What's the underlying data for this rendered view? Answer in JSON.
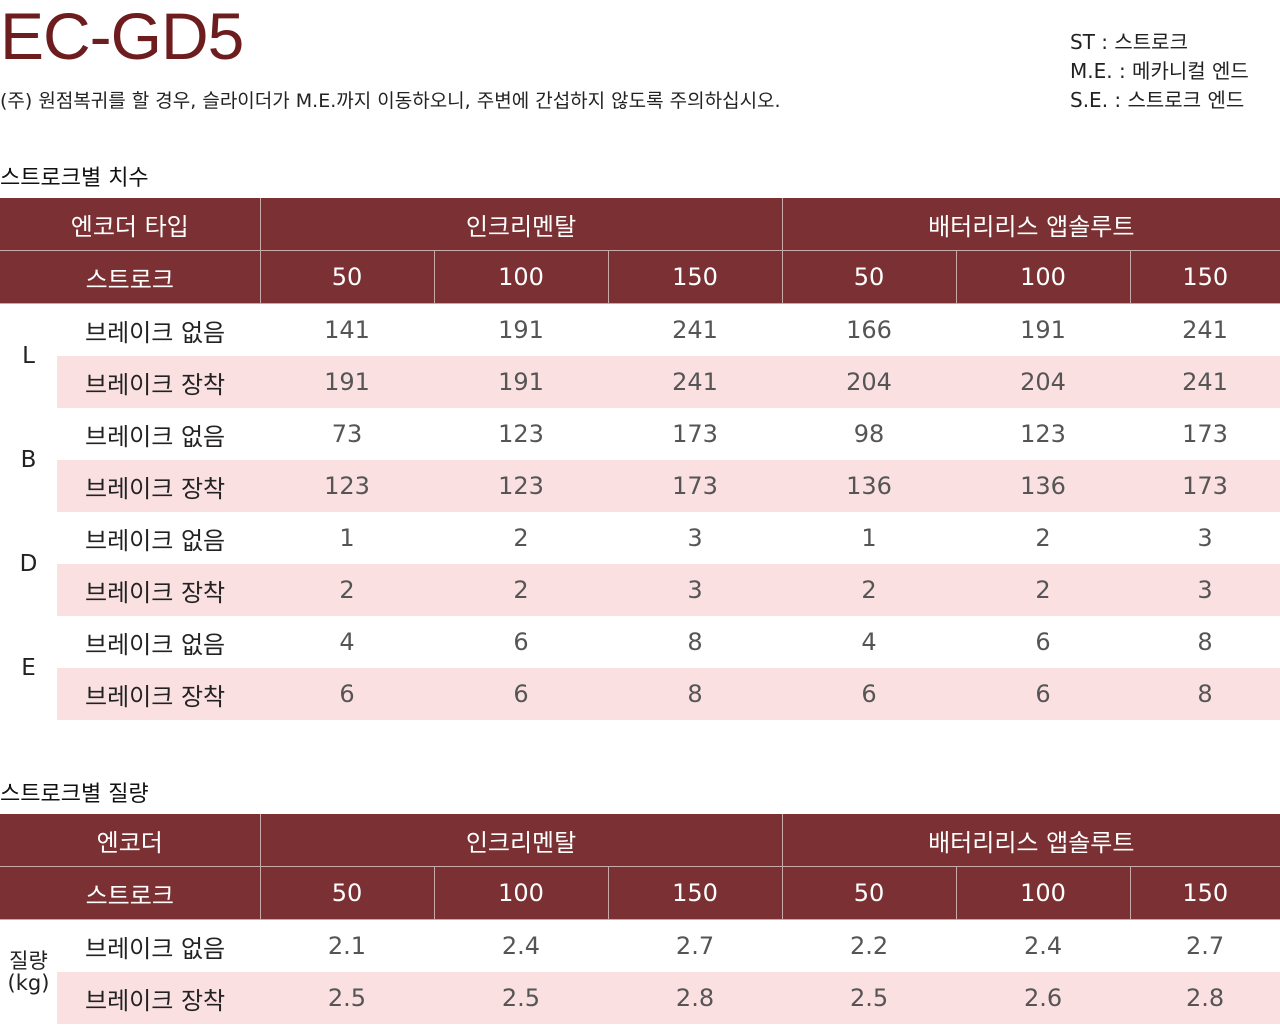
{
  "header": {
    "title": "EC-GD5",
    "note": "(주) 원점복귀를 할 경우, 슬라이더가 M.E.까지 이동하오니, 주변에 간섭하지 않도록 주의하십시오.",
    "legend": [
      "ST : 스트로크",
      "M.E. : 메카니컬 엔드",
      "S.E. : 스트로크 엔드"
    ]
  },
  "dim_table": {
    "section_title": "스트로크별 치수",
    "encoder_label": "엔코더 타입",
    "group_incremental": "인크리멘탈",
    "group_battery": "배터리리스 앱솔루트",
    "stroke_label": "스트로크",
    "strokes": [
      "50",
      "100",
      "150",
      "50",
      "100",
      "150"
    ],
    "groups": [
      {
        "name": "L",
        "rows": [
          {
            "label": "브레이크 없음",
            "values": [
              "141",
              "191",
              "241",
              "166",
              "191",
              "241"
            ]
          },
          {
            "label": "브레이크 장착",
            "values": [
              "191",
              "191",
              "241",
              "204",
              "204",
              "241"
            ]
          }
        ]
      },
      {
        "name": "B",
        "rows": [
          {
            "label": "브레이크 없음",
            "values": [
              "73",
              "123",
              "173",
              "98",
              "123",
              "173"
            ]
          },
          {
            "label": "브레이크 장착",
            "values": [
              "123",
              "123",
              "173",
              "136",
              "136",
              "173"
            ]
          }
        ]
      },
      {
        "name": "D",
        "rows": [
          {
            "label": "브레이크 없음",
            "values": [
              "1",
              "2",
              "3",
              "1",
              "2",
              "3"
            ]
          },
          {
            "label": "브레이크 장착",
            "values": [
              "2",
              "2",
              "3",
              "2",
              "2",
              "3"
            ]
          }
        ]
      },
      {
        "name": "E",
        "rows": [
          {
            "label": "브레이크 없음",
            "values": [
              "4",
              "6",
              "8",
              "4",
              "6",
              "8"
            ]
          },
          {
            "label": "브레이크 장착",
            "values": [
              "6",
              "6",
              "8",
              "6",
              "6",
              "8"
            ]
          }
        ]
      }
    ]
  },
  "weight_table": {
    "section_title": "스트로크별 질량",
    "encoder_label": "엔코더",
    "group_incremental": "인크리멘탈",
    "group_battery": "배터리리스 앱솔루트",
    "stroke_label": "스트로크",
    "strokes": [
      "50",
      "100",
      "150",
      "50",
      "100",
      "150"
    ],
    "group_name_line1": "질량",
    "group_name_line2": "(kg)",
    "rows": [
      {
        "label": "브레이크 없음",
        "values": [
          "2.1",
          "2.4",
          "2.7",
          "2.2",
          "2.4",
          "2.7"
        ]
      },
      {
        "label": "브레이크 장착",
        "values": [
          "2.5",
          "2.5",
          "2.8",
          "2.5",
          "2.6",
          "2.8"
        ]
      }
    ]
  },
  "colors": {
    "header_bg": "#7b3133",
    "title": "#6e1d1f",
    "pink_row": "#fbe0e1"
  }
}
